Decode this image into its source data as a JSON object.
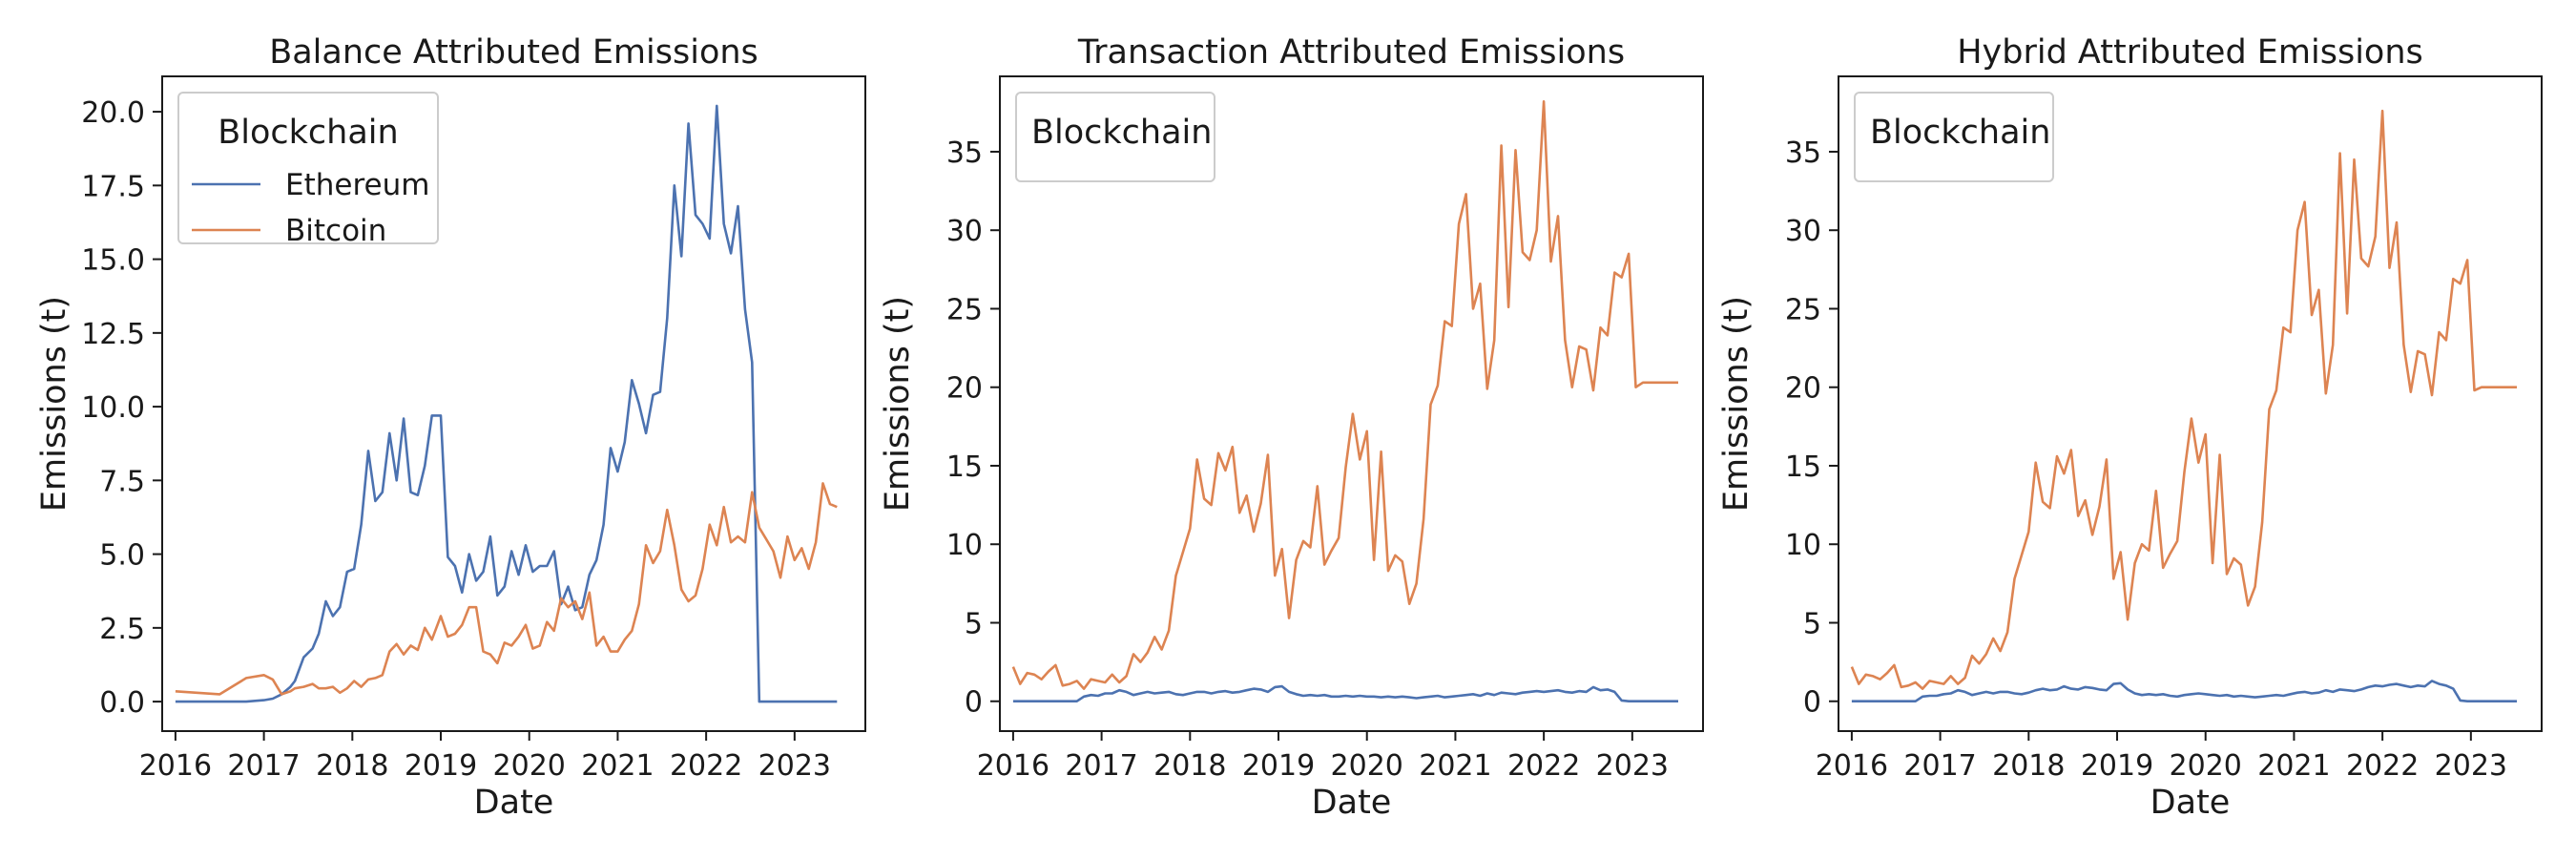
{
  "colors": {
    "ethereum": "#4c72b0",
    "bitcoin": "#dd8452",
    "axes": "#1a1a1a",
    "legend_border": "#cccccc"
  },
  "chart_data": [
    {
      "type": "line",
      "title": "Balance Attributed Emissions",
      "xlabel": "Date",
      "ylabel": "Emissions (t)",
      "xlim": [
        2015.85,
        2023.8
      ],
      "ylim": [
        -1.0,
        21.2
      ],
      "xticks": [
        2016,
        2017,
        2018,
        2019,
        2020,
        2021,
        2022,
        2023
      ],
      "xtick_labels": [
        "2016",
        "2017",
        "2018",
        "2019",
        "2020",
        "2021",
        "2022",
        "2023"
      ],
      "yticks": [
        0,
        2.5,
        5,
        7.5,
        10,
        12.5,
        15,
        17.5,
        20
      ],
      "ytick_labels": [
        "0.0",
        "2.5",
        "5.0",
        "7.5",
        "10.0",
        "12.5",
        "15.0",
        "17.5",
        "20.0"
      ],
      "grid": false,
      "legend": {
        "title": "Blockchain",
        "placement": "top-left",
        "entries": [
          "Ethereum",
          "Bitcoin"
        ]
      },
      "x": [
        2016.0,
        2016.5,
        2016.8,
        2017.0,
        2017.1,
        2017.2,
        2017.3,
        2017.35,
        2017.45,
        2017.55,
        2017.62,
        2017.7,
        2017.78,
        2017.86,
        2017.94,
        2018.02,
        2018.1,
        2018.18,
        2018.26,
        2018.34,
        2018.42,
        2018.5,
        2018.58,
        2018.66,
        2018.74,
        2018.82,
        2018.9,
        2019.0,
        2019.08,
        2019.16,
        2019.24,
        2019.32,
        2019.4,
        2019.48,
        2019.56,
        2019.64,
        2019.72,
        2019.8,
        2019.88,
        2019.96,
        2020.04,
        2020.12,
        2020.2,
        2020.28,
        2020.36,
        2020.44,
        2020.52,
        2020.6,
        2020.68,
        2020.76,
        2020.84,
        2020.92,
        2021.0,
        2021.08,
        2021.16,
        2021.24,
        2021.32,
        2021.4,
        2021.48,
        2021.56,
        2021.64,
        2021.72,
        2021.8,
        2021.88,
        2021.96,
        2022.04,
        2022.12,
        2022.2,
        2022.28,
        2022.36,
        2022.44,
        2022.52,
        2022.6,
        2022.68,
        2022.76,
        2022.84,
        2022.92,
        2023.0,
        2023.08,
        2023.16,
        2023.24,
        2023.32,
        2023.4,
        2023.48
      ],
      "series": [
        {
          "name": "Ethereum",
          "color": "#4c72b0",
          "values": [
            0.0,
            0.0,
            0.0,
            0.05,
            0.1,
            0.25,
            0.5,
            0.7,
            1.5,
            1.8,
            2.3,
            3.4,
            2.9,
            3.2,
            4.4,
            4.5,
            6.0,
            8.5,
            6.8,
            7.1,
            9.1,
            7.5,
            9.6,
            7.1,
            7.0,
            8.0,
            9.7,
            9.7,
            4.9,
            4.6,
            3.7,
            5.0,
            4.1,
            4.4,
            5.6,
            3.6,
            3.9,
            5.1,
            4.3,
            5.3,
            4.4,
            4.6,
            4.6,
            5.1,
            3.3,
            3.9,
            3.1,
            3.2,
            4.3,
            4.8,
            6.0,
            8.6,
            7.8,
            8.8,
            10.9,
            10.1,
            9.1,
            10.4,
            10.5,
            13.0,
            17.5,
            15.1,
            19.6,
            16.5,
            16.2,
            15.7,
            20.2,
            16.2,
            15.2,
            16.8,
            13.3,
            11.5,
            0.0,
            0.0,
            0.0,
            0.0,
            0.0,
            0.0,
            0.0,
            0.0,
            0.0,
            0.0,
            0.0,
            0.0
          ]
        },
        {
          "name": "Bitcoin",
          "color": "#dd8452",
          "values": [
            0.35,
            0.25,
            0.8,
            0.9,
            0.75,
            0.25,
            0.35,
            0.45,
            0.5,
            0.6,
            0.45,
            0.45,
            0.5,
            0.3,
            0.45,
            0.7,
            0.5,
            0.75,
            0.8,
            0.9,
            1.7,
            1.95,
            1.6,
            1.9,
            1.75,
            2.5,
            2.1,
            2.9,
            2.2,
            2.3,
            2.6,
            3.2,
            3.2,
            1.7,
            1.6,
            1.3,
            2.0,
            1.9,
            2.2,
            2.6,
            1.8,
            1.9,
            2.7,
            2.4,
            3.5,
            3.2,
            3.4,
            2.8,
            3.7,
            1.9,
            2.2,
            1.7,
            1.7,
            2.1,
            2.4,
            3.3,
            5.3,
            4.7,
            5.1,
            6.5,
            5.3,
            3.8,
            3.4,
            3.6,
            4.5,
            6.0,
            5.3,
            6.6,
            5.4,
            5.6,
            5.4,
            7.1,
            5.9,
            5.5,
            5.1,
            4.2,
            5.6,
            4.8,
            5.2,
            4.5,
            5.4,
            7.4,
            6.7,
            6.6
          ]
        }
      ]
    },
    {
      "type": "line",
      "title": "Transaction Attributed Emissions",
      "xlabel": "Date",
      "ylabel": "Emissions (t)",
      "xlim": [
        2015.85,
        2023.8
      ],
      "ylim": [
        -1.9,
        39.8
      ],
      "xticks": [
        2016,
        2017,
        2018,
        2019,
        2020,
        2021,
        2022,
        2023
      ],
      "xtick_labels": [
        "2016",
        "2017",
        "2018",
        "2019",
        "2020",
        "2021",
        "2022",
        "2023"
      ],
      "yticks": [
        0,
        5,
        10,
        15,
        20,
        25,
        30,
        35
      ],
      "ytick_labels": [
        "0",
        "5",
        "10",
        "15",
        "20",
        "25",
        "30",
        "35"
      ],
      "grid": false,
      "legend": {
        "title": "Blockchain",
        "placement": "top-left",
        "entries": []
      },
      "x": [
        2016.0,
        2016.08,
        2016.16,
        2016.24,
        2016.32,
        2016.4,
        2016.48,
        2016.56,
        2016.64,
        2016.72,
        2016.8,
        2016.88,
        2016.96,
        2017.04,
        2017.12,
        2017.2,
        2017.28,
        2017.36,
        2017.44,
        2017.52,
        2017.6,
        2017.68,
        2017.76,
        2017.84,
        2017.92,
        2018.0,
        2018.08,
        2018.16,
        2018.24,
        2018.32,
        2018.4,
        2018.48,
        2018.56,
        2018.64,
        2018.72,
        2018.8,
        2018.88,
        2018.96,
        2019.04,
        2019.12,
        2019.2,
        2019.28,
        2019.36,
        2019.44,
        2019.52,
        2019.6,
        2019.68,
        2019.76,
        2019.84,
        2019.92,
        2020.0,
        2020.08,
        2020.16,
        2020.24,
        2020.32,
        2020.4,
        2020.48,
        2020.56,
        2020.64,
        2020.72,
        2020.8,
        2020.88,
        2020.96,
        2021.04,
        2021.12,
        2021.2,
        2021.28,
        2021.36,
        2021.44,
        2021.52,
        2021.6,
        2021.68,
        2021.76,
        2021.84,
        2021.92,
        2022.0,
        2022.08,
        2022.16,
        2022.24,
        2022.32,
        2022.4,
        2022.48,
        2022.56,
        2022.64,
        2022.72,
        2022.8,
        2022.88,
        2022.96,
        2023.04,
        2023.12,
        2023.2,
        2023.28,
        2023.36,
        2023.44,
        2023.52
      ],
      "series": [
        {
          "name": "Ethereum",
          "color": "#4c72b0",
          "values": [
            0.0,
            0.0,
            0.0,
            0.0,
            0.0,
            0.0,
            0.0,
            0.0,
            0.0,
            0.0,
            0.3,
            0.4,
            0.35,
            0.5,
            0.5,
            0.7,
            0.6,
            0.4,
            0.5,
            0.6,
            0.5,
            0.55,
            0.6,
            0.45,
            0.4,
            0.5,
            0.6,
            0.6,
            0.5,
            0.6,
            0.65,
            0.55,
            0.6,
            0.7,
            0.8,
            0.75,
            0.6,
            0.9,
            0.95,
            0.6,
            0.45,
            0.35,
            0.4,
            0.35,
            0.4,
            0.3,
            0.3,
            0.35,
            0.3,
            0.35,
            0.3,
            0.3,
            0.25,
            0.3,
            0.25,
            0.3,
            0.25,
            0.2,
            0.25,
            0.3,
            0.35,
            0.25,
            0.3,
            0.35,
            0.4,
            0.45,
            0.35,
            0.5,
            0.4,
            0.55,
            0.5,
            0.45,
            0.55,
            0.6,
            0.65,
            0.6,
            0.65,
            0.7,
            0.6,
            0.55,
            0.65,
            0.6,
            0.9,
            0.7,
            0.75,
            0.6,
            0.05,
            0.0,
            0.0,
            0.0,
            0.0,
            0.0,
            0.0,
            0.0,
            0.0
          ]
        },
        {
          "name": "Bitcoin",
          "color": "#dd8452",
          "values": [
            2.2,
            1.1,
            1.8,
            1.7,
            1.4,
            1.9,
            2.3,
            1.0,
            1.1,
            1.3,
            0.8,
            1.4,
            1.3,
            1.2,
            1.7,
            1.2,
            1.6,
            3.0,
            2.5,
            3.1,
            4.1,
            3.3,
            4.5,
            8.0,
            9.5,
            11.0,
            15.4,
            12.9,
            12.5,
            15.8,
            14.7,
            16.2,
            12.0,
            13.1,
            10.8,
            12.6,
            15.7,
            8.0,
            9.7,
            5.3,
            9.0,
            10.2,
            9.8,
            13.7,
            8.7,
            9.6,
            10.4,
            14.9,
            18.3,
            15.4,
            17.2,
            9.0,
            15.9,
            8.3,
            9.3,
            8.9,
            6.2,
            7.5,
            11.6,
            18.9,
            20.1,
            24.2,
            23.9,
            30.4,
            32.3,
            25.0,
            26.6,
            19.9,
            23.0,
            35.4,
            25.1,
            35.1,
            28.6,
            28.1,
            30.0,
            38.2,
            28.0,
            30.9,
            23.0,
            20.0,
            22.6,
            22.4,
            19.8,
            23.8,
            23.3,
            27.3,
            27.0,
            28.5,
            20.0,
            20.3,
            20.3,
            20.3,
            20.3,
            20.3,
            20.3
          ]
        }
      ]
    },
    {
      "type": "line",
      "title": "Hybrid Attributed Emissions",
      "xlabel": "Date",
      "ylabel": "Emissions (t)",
      "xlim": [
        2015.85,
        2023.8
      ],
      "ylim": [
        -1.9,
        39.8
      ],
      "xticks": [
        2016,
        2017,
        2018,
        2019,
        2020,
        2021,
        2022,
        2023
      ],
      "xtick_labels": [
        "2016",
        "2017",
        "2018",
        "2019",
        "2020",
        "2021",
        "2022",
        "2023"
      ],
      "yticks": [
        0,
        5,
        10,
        15,
        20,
        25,
        30,
        35
      ],
      "ytick_labels": [
        "0",
        "5",
        "10",
        "15",
        "20",
        "25",
        "30",
        "35"
      ],
      "grid": false,
      "legend": {
        "title": "Blockchain",
        "placement": "top-left",
        "entries": []
      },
      "x": [
        2016.0,
        2016.08,
        2016.16,
        2016.24,
        2016.32,
        2016.4,
        2016.48,
        2016.56,
        2016.64,
        2016.72,
        2016.8,
        2016.88,
        2016.96,
        2017.04,
        2017.12,
        2017.2,
        2017.28,
        2017.36,
        2017.44,
        2017.52,
        2017.6,
        2017.68,
        2017.76,
        2017.84,
        2017.92,
        2018.0,
        2018.08,
        2018.16,
        2018.24,
        2018.32,
        2018.4,
        2018.48,
        2018.56,
        2018.64,
        2018.72,
        2018.8,
        2018.88,
        2018.96,
        2019.04,
        2019.12,
        2019.2,
        2019.28,
        2019.36,
        2019.44,
        2019.52,
        2019.6,
        2019.68,
        2019.76,
        2019.84,
        2019.92,
        2020.0,
        2020.08,
        2020.16,
        2020.24,
        2020.32,
        2020.4,
        2020.48,
        2020.56,
        2020.64,
        2020.72,
        2020.8,
        2020.88,
        2020.96,
        2021.04,
        2021.12,
        2021.2,
        2021.28,
        2021.36,
        2021.44,
        2021.52,
        2021.6,
        2021.68,
        2021.76,
        2021.84,
        2021.92,
        2022.0,
        2022.08,
        2022.16,
        2022.24,
        2022.32,
        2022.4,
        2022.48,
        2022.56,
        2022.64,
        2022.72,
        2022.8,
        2022.88,
        2022.96,
        2023.04,
        2023.12,
        2023.2,
        2023.28,
        2023.36,
        2023.44,
        2023.52
      ],
      "series": [
        {
          "name": "Ethereum",
          "color": "#4c72b0",
          "values": [
            0.0,
            0.0,
            0.0,
            0.0,
            0.0,
            0.0,
            0.0,
            0.0,
            0.0,
            0.0,
            0.3,
            0.35,
            0.35,
            0.45,
            0.5,
            0.7,
            0.6,
            0.4,
            0.5,
            0.6,
            0.5,
            0.6,
            0.6,
            0.5,
            0.45,
            0.55,
            0.7,
            0.8,
            0.7,
            0.75,
            0.95,
            0.8,
            0.75,
            0.9,
            0.85,
            0.75,
            0.7,
            1.1,
            1.15,
            0.75,
            0.5,
            0.4,
            0.45,
            0.4,
            0.45,
            0.35,
            0.3,
            0.4,
            0.45,
            0.5,
            0.45,
            0.4,
            0.35,
            0.4,
            0.3,
            0.35,
            0.3,
            0.25,
            0.3,
            0.35,
            0.4,
            0.35,
            0.45,
            0.55,
            0.6,
            0.5,
            0.55,
            0.7,
            0.6,
            0.75,
            0.7,
            0.65,
            0.75,
            0.9,
            1.0,
            0.95,
            1.05,
            1.1,
            1.0,
            0.9,
            1.0,
            0.95,
            1.3,
            1.1,
            1.0,
            0.8,
            0.05,
            0.0,
            0.0,
            0.0,
            0.0,
            0.0,
            0.0,
            0.0,
            0.0
          ]
        },
        {
          "name": "Bitcoin",
          "color": "#dd8452",
          "values": [
            2.2,
            1.1,
            1.7,
            1.6,
            1.4,
            1.8,
            2.3,
            0.9,
            1.0,
            1.2,
            0.8,
            1.3,
            1.2,
            1.1,
            1.6,
            1.1,
            1.5,
            2.9,
            2.4,
            3.0,
            4.0,
            3.2,
            4.4,
            7.8,
            9.3,
            10.8,
            15.2,
            12.7,
            12.3,
            15.6,
            14.5,
            16.0,
            11.8,
            12.8,
            10.6,
            12.4,
            15.4,
            7.8,
            9.5,
            5.2,
            8.8,
            10.0,
            9.6,
            13.4,
            8.5,
            9.4,
            10.2,
            14.6,
            18.0,
            15.2,
            17.0,
            8.8,
            15.7,
            8.1,
            9.1,
            8.7,
            6.1,
            7.3,
            11.4,
            18.6,
            19.8,
            23.8,
            23.5,
            30.0,
            31.8,
            24.6,
            26.2,
            19.6,
            22.7,
            34.9,
            24.7,
            34.5,
            28.2,
            27.7,
            29.6,
            37.6,
            27.6,
            30.5,
            22.7,
            19.7,
            22.3,
            22.1,
            19.5,
            23.5,
            23.0,
            26.9,
            26.6,
            28.1,
            19.8,
            20.0,
            20.0,
            20.0,
            20.0,
            20.0,
            20.0
          ]
        }
      ]
    }
  ]
}
